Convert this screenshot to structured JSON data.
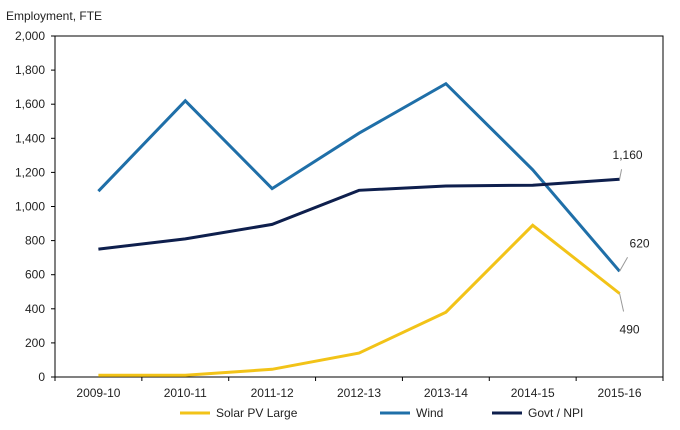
{
  "chart_data": {
    "type": "line",
    "ylabel": "Employment, FTE",
    "ylim": [
      0,
      2000
    ],
    "yticks": [
      0,
      200,
      400,
      600,
      800,
      1000,
      1200,
      1400,
      1600,
      1800,
      2000
    ],
    "ytick_labels": [
      "0",
      "200",
      "400",
      "600",
      "800",
      "1,000",
      "1,200",
      "1,400",
      "1,600",
      "1,800",
      "2,000"
    ],
    "categories": [
      "2009-10",
      "2010-11",
      "2011-12",
      "2012-13",
      "2013-14",
      "2014-15",
      "2015-16"
    ],
    "grid": false,
    "legend_position": "bottom",
    "series": [
      {
        "name": "Solar PV Large",
        "color": "#f2c318",
        "values": [
          10,
          10,
          45,
          140,
          380,
          890,
          490
        ]
      },
      {
        "name": "Wind",
        "color": "#1f6fa8",
        "values": [
          1090,
          1620,
          1105,
          1430,
          1720,
          1215,
          620
        ]
      },
      {
        "name": "Govt / NPI",
        "color": "#0e1f4d",
        "values": [
          750,
          810,
          895,
          1095,
          1120,
          1125,
          1160
        ]
      }
    ],
    "annotations": [
      {
        "series": 2,
        "index": 6,
        "text": "1,160"
      },
      {
        "series": 1,
        "index": 6,
        "text": "620"
      },
      {
        "series": 0,
        "index": 6,
        "text": "490"
      }
    ]
  }
}
